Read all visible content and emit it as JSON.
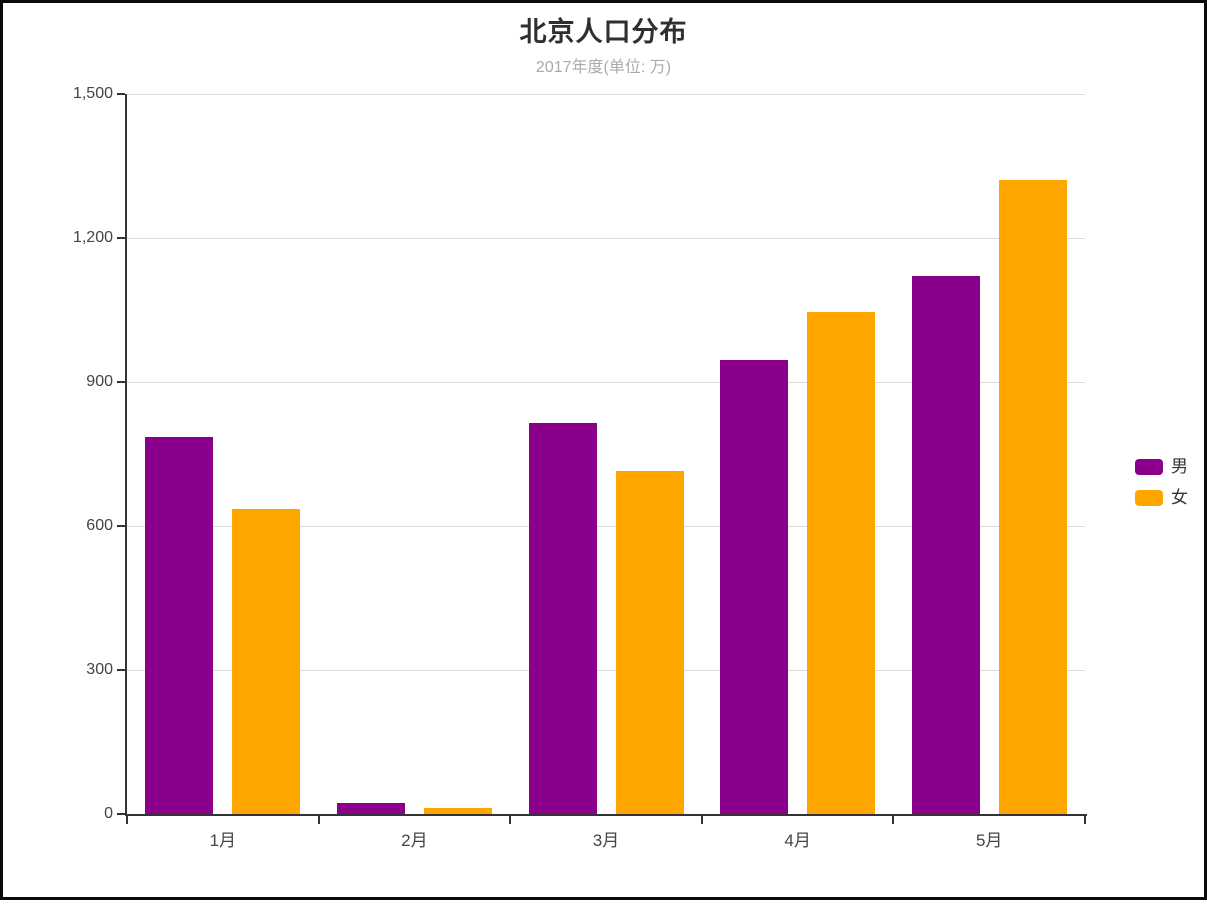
{
  "chart_data": {
    "type": "bar",
    "title": "北京人口分布",
    "subtitle": "2017年度(单位: 万)",
    "categories": [
      "1月",
      "2月",
      "3月",
      "4月",
      "5月"
    ],
    "series": [
      {
        "name": "男",
        "color": "#8B008B",
        "values": [
          785,
          23,
          815,
          945,
          1120
        ]
      },
      {
        "name": "女",
        "color": "#FFA500",
        "values": [
          635,
          12,
          715,
          1045,
          1320
        ]
      }
    ],
    "ylim": [
      0,
      1500
    ],
    "yticks": [
      0,
      300,
      600,
      900,
      1200,
      1500
    ],
    "ytick_labels": [
      "0",
      "300",
      "600",
      "900",
      "1,200",
      "1,500"
    ],
    "grid": true,
    "legend_position": "right"
  }
}
